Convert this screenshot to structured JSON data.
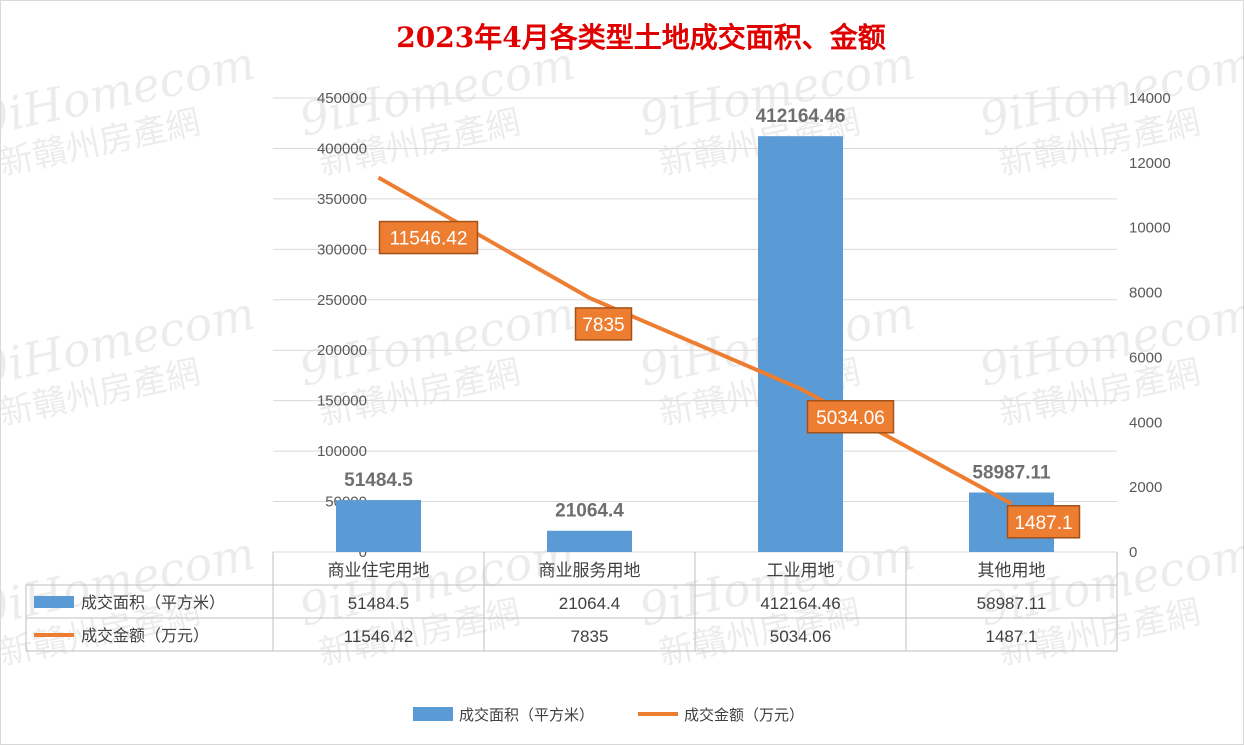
{
  "watermark": {
    "line1": "9iHomecom",
    "line2": "新贛州房產網"
  },
  "chart_data": {
    "type": "bar+line",
    "title": "2023年4月各类型土地成交面积、金额",
    "categories": [
      "商业住宅用地",
      "商业服务用地",
      "工业用地",
      "其他用地"
    ],
    "series": [
      {
        "name": "成交面积（平方米）",
        "type": "bar",
        "axis": "left",
        "color": "#5b9bd5",
        "values": [
          51484.5,
          21064.4,
          412164.46,
          58987.11
        ],
        "labels": [
          "51484.5",
          "21064.4",
          "412164.46",
          "58987.11"
        ]
      },
      {
        "name": "成交金额（万元）",
        "type": "line",
        "axis": "right",
        "color": "#ed7d31",
        "values": [
          11546.42,
          7835,
          5034.06,
          1487.1
        ],
        "labels": [
          "11546.42",
          "7835",
          "5034.06",
          "1487.1"
        ]
      }
    ],
    "y_left": {
      "min": 0,
      "max": 450000,
      "step": 50000,
      "ticks": [
        "0",
        "50000",
        "100000",
        "150000",
        "200000",
        "250000",
        "300000",
        "350000",
        "400000",
        "450000"
      ]
    },
    "y_right": {
      "min": 0,
      "max": 14000,
      "step": 2000,
      "ticks": [
        "0",
        "2000",
        "4000",
        "6000",
        "8000",
        "10000",
        "12000",
        "14000"
      ]
    },
    "grid": true,
    "data_table": true,
    "legend_position": "bottom"
  }
}
